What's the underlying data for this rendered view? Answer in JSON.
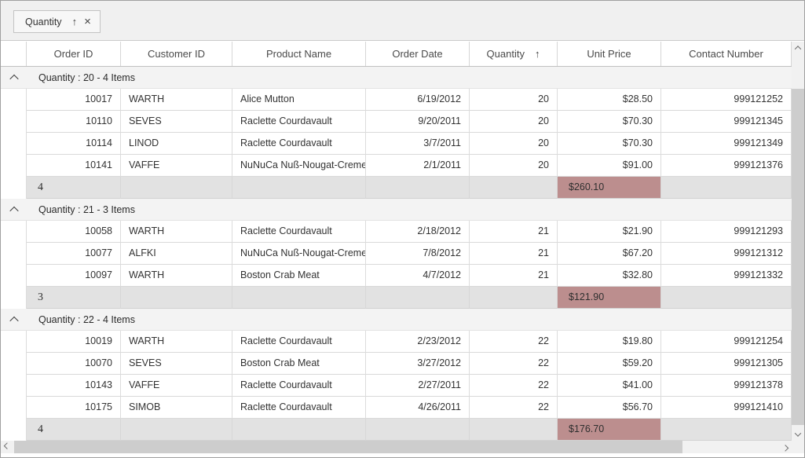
{
  "group_drop_area": {
    "chip": {
      "label": "Quantity",
      "sort_glyph": "↑",
      "close_glyph": "×"
    }
  },
  "table": {
    "columns": [
      {
        "label": "Order ID"
      },
      {
        "label": "Customer ID"
      },
      {
        "label": "Product Name"
      },
      {
        "label": "Order Date"
      },
      {
        "label": "Quantity",
        "sorted": "ascending",
        "sort_glyph": "↑"
      },
      {
        "label": "Unit Price"
      },
      {
        "label": "Contact Number"
      }
    ],
    "groups": [
      {
        "caption": "Quantity : 20 - 4 Items",
        "rows": [
          [
            "10017",
            "WARTH",
            "Alice Mutton",
            "6/19/2012",
            "20",
            "$28.50",
            "999121252"
          ],
          [
            "10110",
            "SEVES",
            "Raclette Courdavault",
            "9/20/2011",
            "20",
            "$70.30",
            "999121345"
          ],
          [
            "10114",
            "LINOD",
            "Raclette Courdavault",
            "3/7/2011",
            "20",
            "$70.30",
            "999121349"
          ],
          [
            "10141",
            "VAFFE",
            "NuNuCa Nuß-Nougat-Creme",
            "2/1/2011",
            "20",
            "$91.00",
            "999121376"
          ]
        ],
        "summary": {
          "count": "4",
          "unit_price_total": "$260.10"
        }
      },
      {
        "caption": "Quantity : 21 - 3 Items",
        "rows": [
          [
            "10058",
            "WARTH",
            "Raclette Courdavault",
            "2/18/2012",
            "21",
            "$21.90",
            "999121293"
          ],
          [
            "10077",
            "ALFKI",
            "NuNuCa Nuß-Nougat-Creme",
            "7/8/2012",
            "21",
            "$67.20",
            "999121312"
          ],
          [
            "10097",
            "WARTH",
            "Boston Crab Meat",
            "4/7/2012",
            "21",
            "$32.80",
            "999121332"
          ]
        ],
        "summary": {
          "count": "3",
          "unit_price_total": "$121.90"
        }
      },
      {
        "caption": "Quantity : 22 - 4 Items",
        "rows": [
          [
            "10019",
            "WARTH",
            "Raclette Courdavault",
            "2/23/2012",
            "22",
            "$19.80",
            "999121254"
          ],
          [
            "10070",
            "SEVES",
            "Boston Crab Meat",
            "3/27/2012",
            "22",
            "$59.20",
            "999121305"
          ],
          [
            "10143",
            "VAFFE",
            "Raclette Courdavault",
            "2/27/2011",
            "22",
            "$41.00",
            "999121378"
          ],
          [
            "10175",
            "SIMOB",
            "Raclette Courdavault",
            "4/26/2011",
            "22",
            "$56.70",
            "999121410"
          ]
        ],
        "summary": {
          "count": "4",
          "unit_price_total": "$176.70"
        }
      }
    ]
  },
  "colors": {
    "summary_highlight": "#bc8e8e",
    "summary_row_bg": "#e2e2e2",
    "caption_row_bg": "#f3f3f3",
    "group_drop_bg": "#f0f0f0"
  },
  "icons": {
    "chip_sort": "up-arrow-icon",
    "chip_close": "close-icon",
    "group_collapse": "chevron-up-icon",
    "scroll_up": "chevron-up-icon",
    "scroll_down": "chevron-down-icon",
    "scroll_left": "chevron-left-icon",
    "scroll_right": "chevron-right-icon"
  }
}
